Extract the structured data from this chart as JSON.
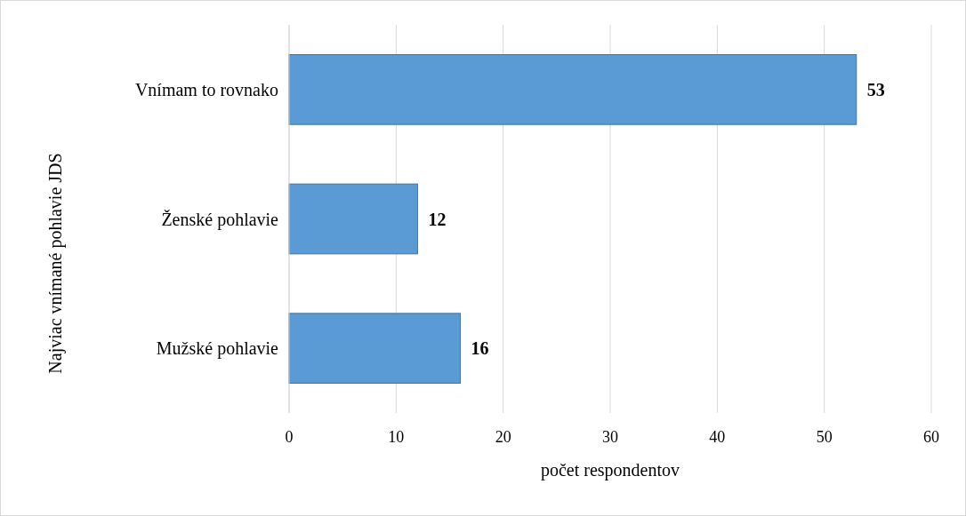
{
  "chart_data": {
    "type": "bar",
    "orientation": "horizontal",
    "xlabel": "počet respondentov",
    "ylabel": "Najviac vnímané pohlavie JDS",
    "categories": [
      "Vnímam to rovnako",
      "Ženské pohlavie",
      "Mužské pohlavie"
    ],
    "values": [
      53,
      12,
      16
    ],
    "color": "#5b9bd5",
    "xlim": [
      0,
      60
    ],
    "xticks": [
      0,
      10,
      20,
      30,
      40,
      50,
      60
    ],
    "grid": "x",
    "data_labels": true
  }
}
